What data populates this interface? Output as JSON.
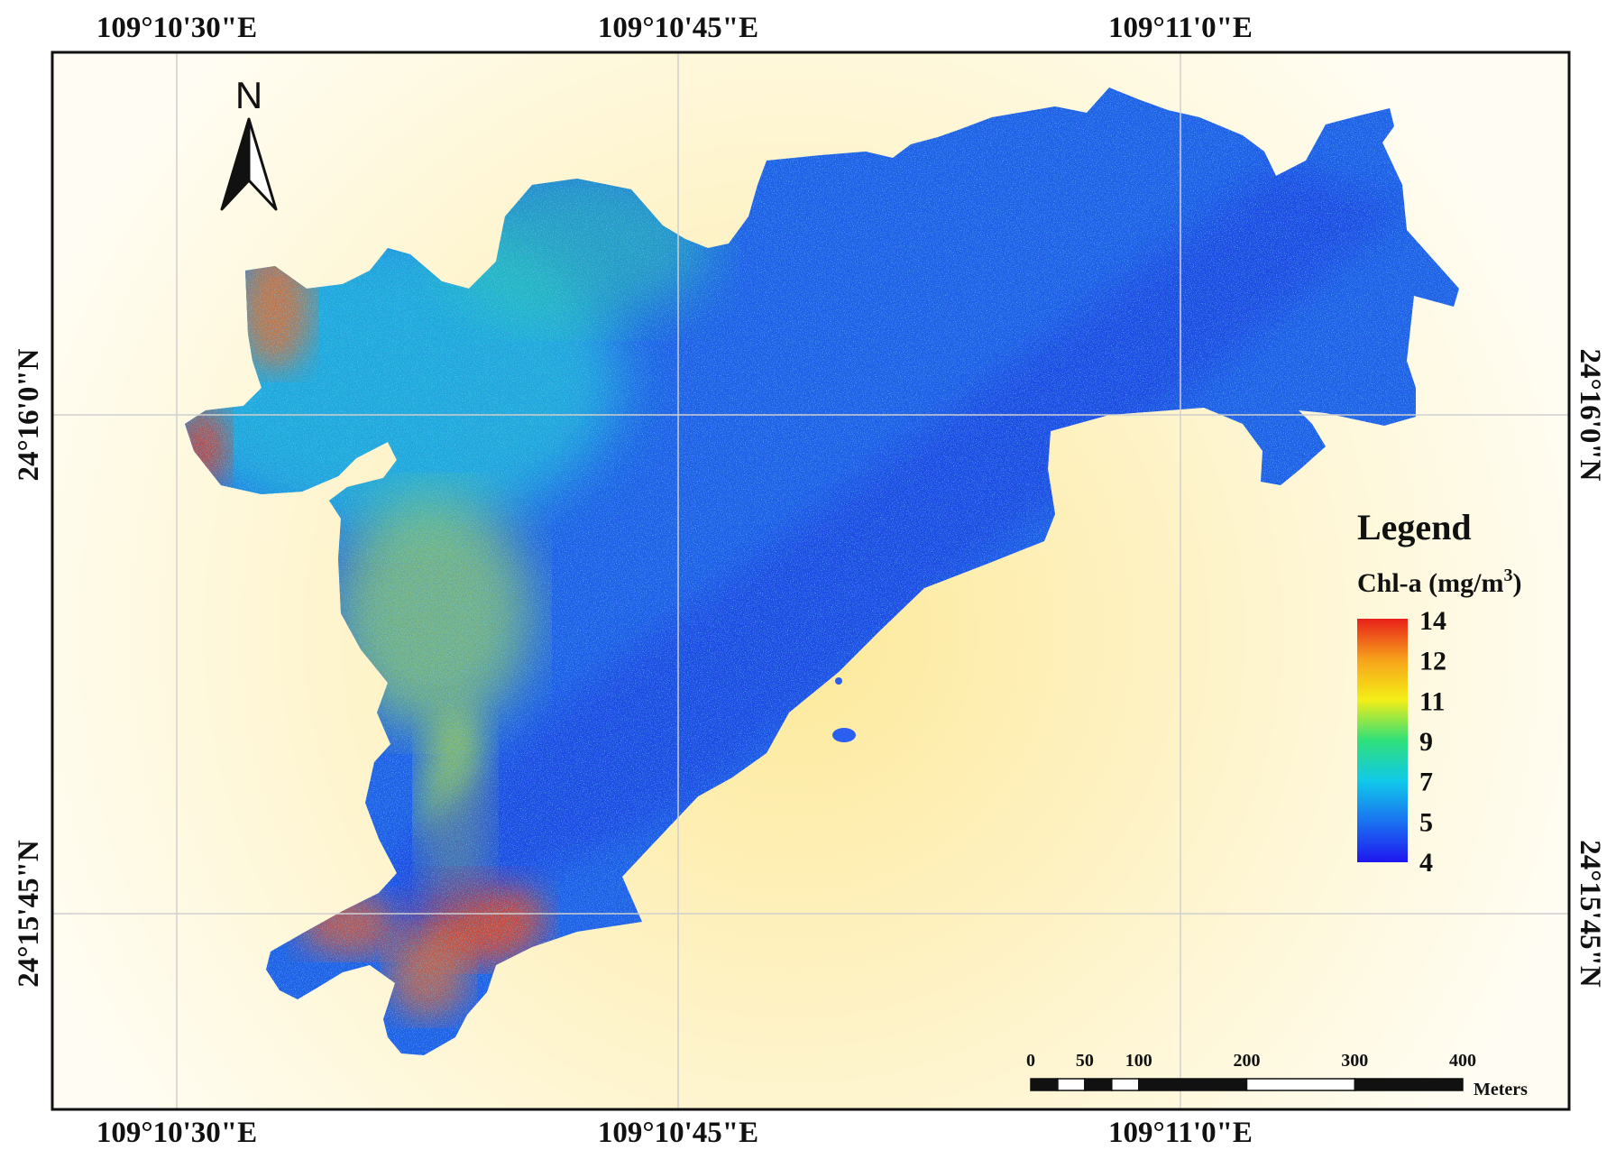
{
  "map": {
    "top_labels": [
      "109°10'30\"E",
      "109°10'45\"E",
      "109°11'0\"E"
    ],
    "bottom_labels": [
      "109°10'30\"E",
      "109°10'45\"E",
      "109°11'0\"E"
    ],
    "left_labels": [
      "24°16'0\"N",
      "24°15'45\"N"
    ],
    "right_labels": [
      "24°16'0\"N",
      "24°15'45\"N"
    ],
    "north_label": "N",
    "background_colors": {
      "center": "#fde99a",
      "edge": "#fffdf3"
    },
    "water_base_color": "#1f5fe6"
  },
  "legend": {
    "title": "Legend",
    "variable": "Chl-a (mg/m",
    "unit_superscript": "3",
    "variable_close": ")",
    "ticks": [
      "14",
      "12",
      "11",
      "9",
      "7",
      "5",
      "4"
    ],
    "color_stops": [
      "#e8201a",
      "#f7a21b",
      "#f4ee17",
      "#2fe07a",
      "#10c9ea",
      "#1a72f0",
      "#1f16ef"
    ]
  },
  "scale_bar": {
    "labels": [
      "0",
      "50",
      "100",
      "200",
      "300",
      "400"
    ],
    "unit": "Meters"
  }
}
